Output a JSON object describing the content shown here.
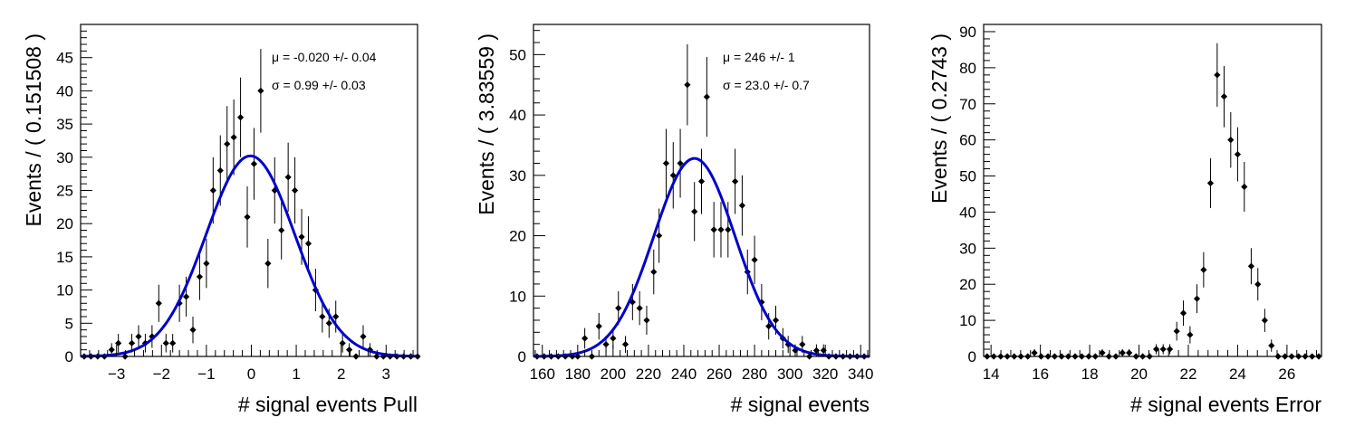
{
  "chart_data": [
    {
      "type": "scatter",
      "xlabel": "# signal events Pull",
      "ylabel": "Events / ( 0.151508 )",
      "xlim": [
        -3.8,
        3.7
      ],
      "ylim": [
        0,
        50
      ],
      "xticks": [
        -3,
        -2,
        -1,
        0,
        1,
        2,
        3
      ],
      "yticks": [
        0,
        5,
        10,
        15,
        20,
        25,
        30,
        35,
        40,
        45
      ],
      "annotations": [
        "μ = -0.020 +/- 0.04",
        "σ =  0.99 +/- 0.03"
      ],
      "fit": {
        "mean": -0.02,
        "sigma": 0.99,
        "peak": 30.2,
        "color": "#0000cc"
      },
      "series": [
        {
          "x": [
            -3.72,
            -3.57,
            -3.42,
            -3.27,
            -3.11,
            -2.96,
            -2.81,
            -2.66,
            -2.51,
            -2.36,
            -2.21,
            -2.06,
            -1.9,
            -1.75,
            -1.6,
            -1.45,
            -1.3,
            -1.15,
            -1.0,
            -0.85,
            -0.69,
            -0.54,
            -0.39,
            -0.24,
            -0.09,
            0.06,
            0.21,
            0.37,
            0.52,
            0.67,
            0.82,
            0.97,
            1.12,
            1.27,
            1.43,
            1.58,
            1.73,
            1.88,
            2.03,
            2.18,
            2.33,
            2.49,
            2.64,
            2.79,
            2.94,
            3.09,
            3.24,
            3.39,
            3.55,
            3.7
          ],
          "y": [
            0,
            0,
            0,
            0,
            1,
            2,
            0,
            2,
            3,
            2,
            3,
            8,
            2,
            2,
            8,
            9,
            4,
            12,
            14,
            25,
            28,
            32,
            33,
            36,
            21,
            29,
            40,
            14,
            25,
            19,
            27,
            25,
            18,
            17,
            10,
            6,
            5,
            6,
            2,
            1,
            0,
            3,
            1,
            0,
            0,
            0,
            0,
            0,
            0,
            0
          ],
          "yerr": [
            0,
            0,
            0,
            0,
            1,
            1.4,
            0,
            1.4,
            1.7,
            1.4,
            1.7,
            2.8,
            1.4,
            1.4,
            2.8,
            3,
            2,
            3.5,
            3.7,
            5,
            5.3,
            5.7,
            5.7,
            6,
            4.6,
            5.4,
            6.3,
            3.7,
            5,
            4.4,
            5.2,
            5,
            4.2,
            4.1,
            3.2,
            2.4,
            2.2,
            2.4,
            1.4,
            1,
            0,
            1.7,
            1,
            0,
            0,
            0,
            0,
            0,
            0,
            0
          ]
        }
      ]
    },
    {
      "type": "scatter",
      "xlabel": "# signal events",
      "ylabel": "Events / ( 3.83559 )",
      "xlim": [
        155,
        345
      ],
      "ylim": [
        0,
        55
      ],
      "xticks": [
        160,
        180,
        200,
        220,
        240,
        260,
        280,
        300,
        320,
        340
      ],
      "yticks": [
        0,
        10,
        20,
        30,
        40,
        50
      ],
      "annotations": [
        "μ =  246 +/- 1",
        "σ =  23.0 +/- 0.7"
      ],
      "fit": {
        "mean": 246,
        "sigma": 23.0,
        "peak": 32.8,
        "color": "#0000cc"
      },
      "series": [
        {
          "x": [
            157,
            161,
            165,
            169,
            173,
            177,
            180,
            184,
            188,
            192,
            196,
            200,
            203,
            207,
            211,
            215,
            219,
            223,
            226,
            230,
            234,
            238,
            242,
            246,
            250,
            253,
            257,
            261,
            265,
            269,
            273,
            276,
            280,
            284,
            288,
            292,
            296,
            299,
            303,
            307,
            311,
            315,
            319,
            322,
            326,
            330,
            334,
            338,
            342
          ],
          "y": [
            0,
            0,
            0,
            0,
            0,
            0,
            0,
            3,
            0,
            5,
            2,
            3,
            8,
            2,
            9,
            8,
            6,
            14,
            20,
            32,
            30,
            32,
            45,
            24,
            29,
            43,
            21,
            21,
            21,
            29,
            25,
            14,
            16,
            9,
            5,
            6,
            3,
            2,
            1,
            2,
            0,
            1,
            1,
            0,
            0,
            0,
            0,
            0,
            0
          ],
          "yerr": [
            0,
            0,
            0,
            0,
            0,
            0,
            0,
            1.7,
            0,
            2.2,
            1.4,
            1.7,
            2.8,
            1.4,
            3,
            2.8,
            2.4,
            3.7,
            4.5,
            5.7,
            5.5,
            5.7,
            6.7,
            4.9,
            5.4,
            6.6,
            4.6,
            4.6,
            4.6,
            5.4,
            5,
            3.7,
            4,
            3,
            2.2,
            2.4,
            1.7,
            1.4,
            1,
            1.4,
            0,
            1,
            1,
            0,
            0,
            0,
            0,
            0,
            0
          ]
        }
      ]
    },
    {
      "type": "scatter",
      "xlabel": "# signal events Error",
      "ylabel": "Events / ( 0.2743 )",
      "xlim": [
        13.7,
        27.4
      ],
      "ylim": [
        0,
        92
      ],
      "xticks": [
        14,
        16,
        18,
        20,
        22,
        24,
        26
      ],
      "yticks": [
        0,
        10,
        20,
        30,
        40,
        50,
        60,
        70,
        80,
        90
      ],
      "annotations": [],
      "series": [
        {
          "x": [
            13.84,
            14.11,
            14.39,
            14.66,
            14.94,
            15.21,
            15.49,
            15.76,
            16.03,
            16.31,
            16.58,
            16.86,
            17.13,
            17.41,
            17.68,
            17.96,
            18.23,
            18.51,
            18.78,
            19.06,
            19.33,
            19.6,
            19.88,
            20.15,
            20.43,
            20.7,
            20.98,
            21.25,
            21.53,
            21.8,
            22.07,
            22.35,
            22.62,
            22.9,
            23.17,
            23.45,
            23.72,
            24.0,
            24.27,
            24.55,
            24.82,
            25.1,
            25.37,
            25.64,
            25.92,
            26.19,
            26.47,
            26.74,
            27.02,
            27.29
          ],
          "y": [
            0,
            0,
            0,
            0,
            0,
            0,
            0,
            1,
            0,
            0,
            0,
            0,
            0,
            0,
            0,
            0,
            0,
            1,
            0,
            0,
            1,
            1,
            0,
            0,
            0,
            2,
            2,
            2,
            7,
            12,
            6,
            16,
            24,
            48,
            78,
            72,
            60,
            56,
            47,
            25,
            20,
            10,
            3,
            0,
            0,
            0,
            0,
            0,
            0,
            0
          ],
          "yerr": [
            0,
            0,
            0,
            0,
            0,
            0,
            0,
            1,
            0,
            0,
            0,
            0,
            0,
            0,
            0,
            0,
            0,
            1,
            0,
            0,
            1,
            1,
            0,
            0,
            0,
            1.4,
            1.4,
            1.4,
            2.6,
            3.5,
            2.4,
            4,
            4.9,
            6.9,
            8.8,
            8.5,
            7.7,
            7.5,
            6.9,
            5,
            4.5,
            3.2,
            1.7,
            0,
            0,
            0,
            0,
            0,
            0,
            0
          ]
        }
      ]
    }
  ]
}
